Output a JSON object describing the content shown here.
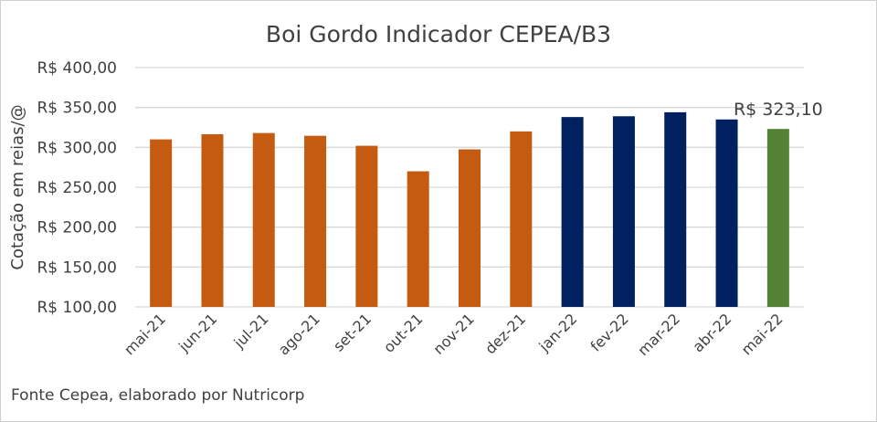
{
  "chart_data": {
    "type": "bar",
    "title": "Boi Gordo Indicador CEPEA/B3",
    "ylabel": "Cotação em reias/@",
    "xlabel": "",
    "ylim": [
      100,
      400
    ],
    "yticks": [
      "R$ 100,00",
      "R$ 150,00",
      "R$ 200,00",
      "R$ 250,00",
      "R$ 300,00",
      "R$ 350,00",
      "R$ 400,00"
    ],
    "ytick_values": [
      100,
      150,
      200,
      250,
      300,
      350,
      400
    ],
    "grid": true,
    "categories": [
      "mai-21",
      "jun-21",
      "jul-21",
      "ago-21",
      "set-21",
      "out-21",
      "nov-21",
      "dez-21",
      "jan-22",
      "fev-22",
      "mar-22",
      "abr-22",
      "mai-22"
    ],
    "values": [
      310,
      316.5,
      318,
      314.5,
      302,
      270,
      297.5,
      320,
      338,
      339,
      344,
      335,
      323.1
    ],
    "bar_colors": [
      "#c55a11",
      "#c55a11",
      "#c55a11",
      "#c55a11",
      "#c55a11",
      "#c55a11",
      "#c55a11",
      "#c55a11",
      "#002060",
      "#002060",
      "#002060",
      "#002060",
      "#548235"
    ],
    "data_labels": {
      "12": "R$ 323,10"
    },
    "source_note": "Fonte Cepea, elaborado por Nutricorp"
  }
}
